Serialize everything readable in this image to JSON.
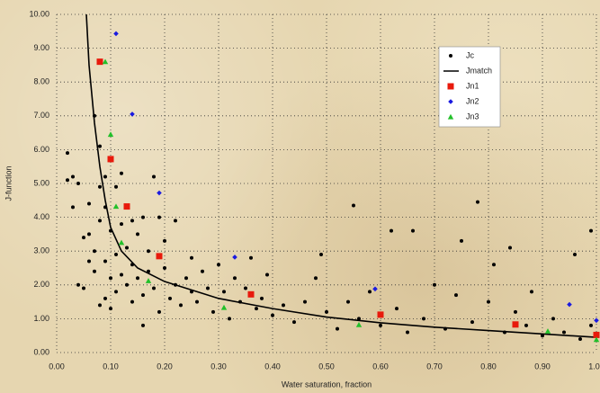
{
  "chart_data": {
    "type": "scatter",
    "x_label": "Water saturation, fraction",
    "y_label": "J-function",
    "xlim": [
      0,
      1
    ],
    "ylim": [
      0,
      10
    ],
    "xticks": [
      {
        "value": 0,
        "label": "0.00"
      },
      {
        "value": 0.1,
        "label": "0.10"
      },
      {
        "value": 0.2,
        "label": "0.20"
      },
      {
        "value": 0.3,
        "label": "0.30"
      },
      {
        "value": 0.4,
        "label": "0.40"
      },
      {
        "value": 0.5,
        "label": "0.50"
      },
      {
        "value": 0.6,
        "label": "0.60"
      },
      {
        "value": 0.7,
        "label": "0.70"
      },
      {
        "value": 0.8,
        "label": "0.80"
      },
      {
        "value": 0.9,
        "label": "0.90"
      },
      {
        "value": 1,
        "label": "1.00"
      }
    ],
    "yticks": [
      {
        "value": 0,
        "label": "0.00"
      },
      {
        "value": 1,
        "label": "1.00"
      },
      {
        "value": 2,
        "label": "2.00"
      },
      {
        "value": 3,
        "label": "3.00"
      },
      {
        "value": 4,
        "label": "4.00"
      },
      {
        "value": 5,
        "label": "5.00"
      },
      {
        "value": 6,
        "label": "6.00"
      },
      {
        "value": 7,
        "label": "7.00"
      },
      {
        "value": 8,
        "label": "8.00"
      },
      {
        "value": 9,
        "label": "9.00"
      },
      {
        "value": 10,
        "label": "10.00"
      }
    ],
    "grid": true,
    "legend_position": "upper right",
    "series": [
      {
        "name": "Jc",
        "color": "#000000",
        "marker": "circle",
        "x": [
          0.02,
          0.02,
          0.03,
          0.03,
          0.04,
          0.04,
          0.05,
          0.05,
          0.06,
          0.06,
          0.06,
          0.07,
          0.07,
          0.07,
          0.08,
          0.08,
          0.08,
          0.08,
          0.09,
          0.09,
          0.09,
          0.09,
          0.1,
          0.1,
          0.1,
          0.11,
          0.11,
          0.11,
          0.12,
          0.12,
          0.12,
          0.13,
          0.13,
          0.14,
          0.14,
          0.14,
          0.15,
          0.15,
          0.16,
          0.16,
          0.16,
          0.17,
          0.17,
          0.18,
          0.18,
          0.19,
          0.19,
          0.2,
          0.2,
          0.21,
          0.22,
          0.22,
          0.23,
          0.24,
          0.25,
          0.25,
          0.26,
          0.27,
          0.28,
          0.29,
          0.3,
          0.31,
          0.32,
          0.33,
          0.34,
          0.35,
          0.36,
          0.37,
          0.38,
          0.39,
          0.4,
          0.42,
          0.44,
          0.46,
          0.48,
          0.49,
          0.5,
          0.52,
          0.54,
          0.55,
          0.56,
          0.58,
          0.6,
          0.62,
          0.63,
          0.65,
          0.66,
          0.68,
          0.7,
          0.72,
          0.74,
          0.75,
          0.77,
          0.78,
          0.8,
          0.81,
          0.83,
          0.84,
          0.85,
          0.87,
          0.88,
          0.9,
          0.92,
          0.94,
          0.96,
          0.97,
          0.99,
          0.99
        ],
        "values": [
          5.9,
          5.1,
          5.2,
          4.3,
          5.0,
          2.0,
          1.9,
          3.4,
          4.4,
          2.7,
          3.5,
          7.0,
          3.0,
          2.4,
          6.1,
          4.9,
          3.9,
          1.4,
          4.3,
          2.7,
          1.6,
          5.2,
          3.6,
          2.2,
          1.3,
          4.9,
          2.9,
          1.8,
          3.8,
          2.3,
          5.3,
          3.1,
          2.0,
          3.9,
          2.6,
          1.5,
          3.5,
          2.2,
          4.0,
          1.7,
          0.8,
          3.0,
          2.4,
          5.2,
          1.9,
          4.0,
          1.2,
          2.5,
          3.3,
          1.6,
          2.0,
          3.9,
          1.4,
          2.2,
          1.8,
          2.8,
          1.5,
          2.4,
          1.9,
          1.2,
          2.6,
          1.8,
          1.0,
          2.2,
          1.5,
          1.9,
          2.8,
          1.3,
          1.6,
          2.3,
          1.1,
          1.4,
          0.9,
          1.5,
          2.2,
          2.9,
          1.2,
          0.7,
          1.5,
          4.35,
          1.0,
          1.8,
          0.8,
          3.6,
          1.3,
          0.6,
          3.6,
          1.0,
          2.0,
          0.7,
          1.7,
          3.3,
          0.9,
          4.45,
          1.5,
          2.6,
          0.6,
          3.1,
          1.2,
          0.8,
          1.8,
          0.5,
          1.0,
          0.6,
          2.9,
          0.4,
          3.6,
          0.8
        ]
      },
      {
        "name": "Jmatch",
        "color": "#000000",
        "mode": "line",
        "x": [
          0.055,
          0.06,
          0.07,
          0.08,
          0.09,
          0.1,
          0.12,
          0.15,
          0.2,
          0.3,
          0.4,
          0.5,
          0.6,
          0.7,
          0.8,
          0.9,
          1.0
        ],
        "values": [
          10,
          8.5,
          6.8,
          5.5,
          4.5,
          3.7,
          3.0,
          2.5,
          2.1,
          1.6,
          1.3,
          1.05,
          0.88,
          0.75,
          0.65,
          0.55,
          0.45
        ]
      },
      {
        "name": "Jn1",
        "color": "#e81a0c",
        "marker": "square",
        "x": [
          0.08,
          0.1,
          0.13,
          0.19,
          0.36,
          0.6,
          0.85,
          1.0
        ],
        "values": [
          8.6,
          5.72,
          4.32,
          2.85,
          1.72,
          1.12,
          0.83,
          0.52
        ]
      },
      {
        "name": "Jn2",
        "color": "#1a1ae0",
        "marker": "diamond",
        "x": [
          0.11,
          0.14,
          0.19,
          0.33,
          0.59,
          0.95,
          1.0
        ],
        "values": [
          9.43,
          7.05,
          4.72,
          2.82,
          1.88,
          1.42,
          0.95
        ]
      },
      {
        "name": "Jn3",
        "color": "#22c02a",
        "marker": "triangle",
        "x": [
          0.09,
          0.1,
          0.11,
          0.12,
          0.17,
          0.31,
          0.56,
          0.91,
          1.0
        ],
        "values": [
          8.6,
          6.45,
          4.32,
          3.25,
          2.12,
          1.33,
          0.82,
          0.63,
          0.38
        ]
      }
    ]
  }
}
